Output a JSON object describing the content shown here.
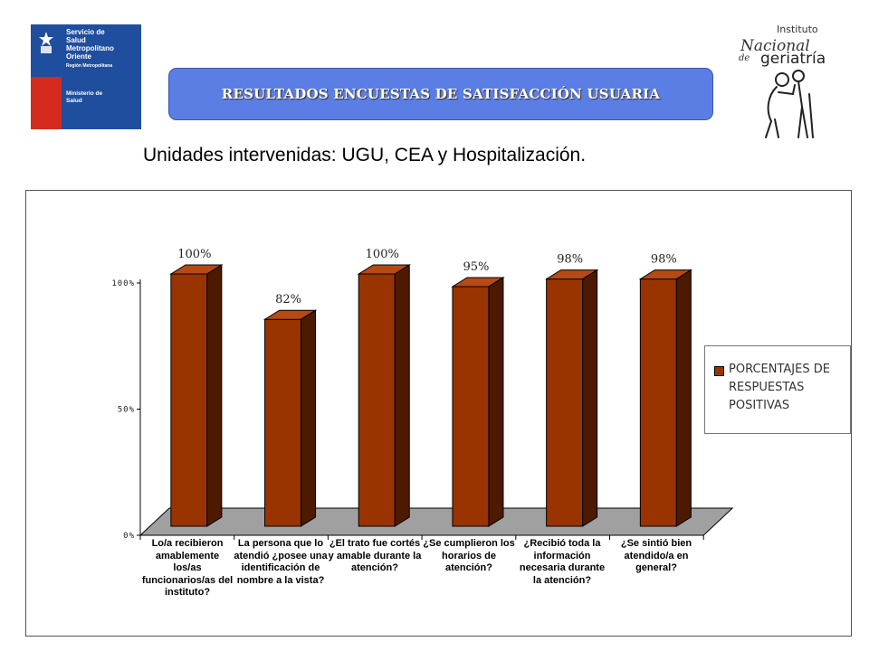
{
  "header": {
    "logo_left": {
      "line1": "Servicio de",
      "line2": "Salud",
      "line3": "Metropolitano",
      "line4": "Oriente",
      "region": "Región Metropolitana",
      "ministry1": "Ministerio de",
      "ministry2": "Salud"
    },
    "logo_right": {
      "word1": "Instituto",
      "word2": "Nacional",
      "word3": "de",
      "word4": "geriatría"
    },
    "banner": "RESULTADOS ENCUESTAS DE SATISFACCIÓN USUARIA",
    "subtitle": "Unidades intervenidas:  UGU, CEA y Hospitalización."
  },
  "colors": {
    "bar_front": "#993300",
    "bar_top": "#b54a12",
    "bar_side": "#4d1a00",
    "floor": "#a0a0a0",
    "banner": "#5b7ee5"
  },
  "chart_data": {
    "type": "bar",
    "categories": [
      "Lo/a recibieron amablemente los/as funcionarios/as del instituto?",
      "La persona que lo atendió ¿posee una identificación de nombre a la vista?",
      "¿El trato fue cortés y amable durante la atención?",
      "¿Se cumplieron los horarios de atención?",
      "¿Recibió toda la información necesaria durante la atención?",
      "¿Se sintió bien atendido/a en general?"
    ],
    "series": [
      {
        "name": "PORCENTAJES DE RESPUESTAS POSITIVAS",
        "values": [
          100,
          82,
          100,
          95,
          98,
          98
        ]
      }
    ],
    "data_labels": [
      "100%",
      "82%",
      "100%",
      "95%",
      "98%",
      "98%"
    ],
    "y_ticks": [
      {
        "value": 0,
        "label": "0%"
      },
      {
        "value": 50,
        "label": "50%"
      },
      {
        "value": 100,
        "label": "100%"
      }
    ],
    "ylim": [
      0,
      100
    ],
    "legend_position": "right",
    "grid": false,
    "style": "3d-column"
  }
}
